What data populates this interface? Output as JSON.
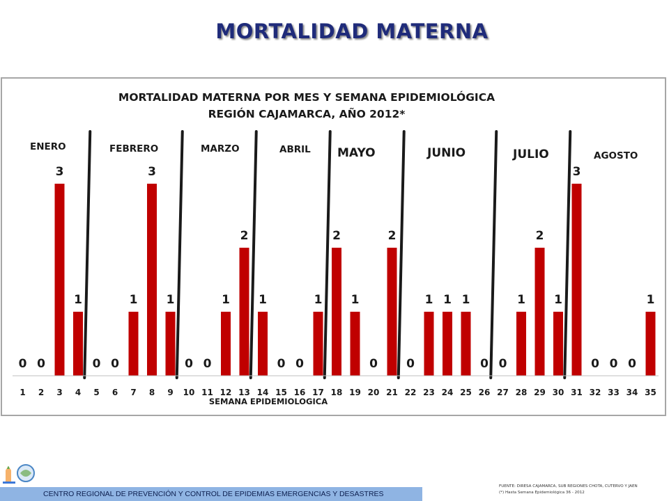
{
  "slide": {
    "title": "MORTALIDAD MATERNA"
  },
  "footer": {
    "text": "CENTRO REGIONAL DE PREVENCIÓN Y CONTROL DE EPIDEMIAS EMERGENCIAS Y DESASTRES",
    "source_line1": "FUENTE: DIRESA CAJAMARCA, SUB REGIONES CHOTA, CUTERVO Y JAEN",
    "source_line2": "(*) Hasta Semana Epidemiológica 36 - 2012"
  },
  "colors": {
    "bar": "#c00000",
    "title": "#1f2b7a",
    "footer_bar": "#8fb4e3"
  },
  "chart_data": {
    "type": "bar",
    "title": "MORTALIDAD MATERNA POR MES Y SEMANA EPIDEMIOLÓGICA",
    "subtitle": "REGIÓN CAJAMARCA, AÑO 2012*",
    "xlabel": "SEMANA EPIDEMIOLOGICA",
    "ylabel": "",
    "ylim": [
      0,
      3
    ],
    "grid": false,
    "categories": [
      "1",
      "2",
      "3",
      "4",
      "5",
      "6",
      "7",
      "8",
      "9",
      "10",
      "11",
      "12",
      "13",
      "14",
      "15",
      "16",
      "17",
      "18",
      "19",
      "20",
      "21",
      "22",
      "23",
      "24",
      "25",
      "26",
      "27",
      "28",
      "29",
      "30",
      "31",
      "32",
      "33",
      "34",
      "35"
    ],
    "values": [
      0,
      0,
      3,
      1,
      0,
      0,
      1,
      3,
      1,
      0,
      0,
      1,
      2,
      1,
      0,
      0,
      1,
      2,
      1,
      0,
      2,
      0,
      1,
      1,
      1,
      0,
      0,
      1,
      2,
      1,
      3,
      0,
      0,
      0,
      1
    ],
    "value_labels": [
      "0",
      "0",
      "3",
      "1",
      "0",
      "0",
      "1",
      "3",
      "1",
      "0",
      "0",
      "1",
      "2",
      "1",
      "0",
      "0",
      "1",
      "2",
      "1",
      "0",
      "2",
      "0",
      "1",
      "1",
      "1",
      "0",
      "0",
      "1",
      "2",
      "1",
      "3",
      "0",
      "0",
      "0",
      "1"
    ],
    "months": [
      {
        "label": "ENERO",
        "after_week": 4
      },
      {
        "label": "FEBRERO",
        "after_week": 9
      },
      {
        "label": "MARZO",
        "after_week": 13
      },
      {
        "label": "ABRIL",
        "after_week": 17
      },
      {
        "label": "MAYO",
        "after_week": 21
      },
      {
        "label": "JUNIO",
        "after_week": 26
      },
      {
        "label": "JULIO",
        "after_week": 30
      },
      {
        "label": "AGOSTO",
        "after_week": null
      }
    ]
  }
}
